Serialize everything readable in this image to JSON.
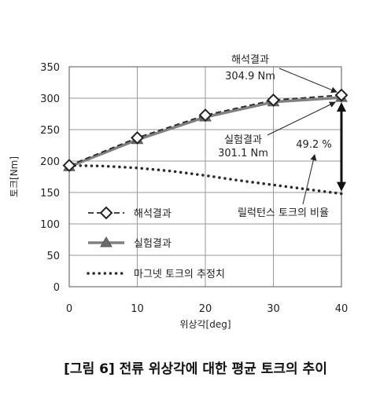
{
  "chart_data": {
    "type": "line",
    "ylabel": "토크[Nm]",
    "xlabel": "위상각[deg]",
    "xlim": [
      0,
      40
    ],
    "ylim": [
      0,
      350
    ],
    "x_ticks": [
      0,
      10,
      20,
      30,
      40
    ],
    "y_ticks": [
      0,
      50,
      100,
      150,
      200,
      250,
      300,
      350
    ],
    "grid": "horizontal",
    "legend_position": "bottom-left",
    "series": [
      {
        "name": "해석결과",
        "style": "dashed-diamond",
        "color": "#2a2a2a",
        "x": [
          0,
          10,
          20,
          30,
          40
        ],
        "y": [
          193,
          237,
          273,
          297,
          304.9
        ]
      },
      {
        "name": "실험결과",
        "style": "solid-triangle",
        "color": "#808080",
        "x": [
          0,
          10,
          20,
          30,
          40
        ],
        "y": [
          191,
          234,
          270,
          294,
          301.1
        ]
      },
      {
        "name": "마그넷 토크의 추정치",
        "style": "dotted",
        "color": "#2a2a2a",
        "x": [
          0,
          5,
          10,
          15,
          20,
          25,
          30,
          35,
          40
        ],
        "y": [
          193,
          192,
          189,
          184,
          177,
          169,
          162,
          155,
          148
        ]
      }
    ],
    "annotations": {
      "analysis_label": "해석결과",
      "analysis_value": "304.9 Nm",
      "experiment_label": "실험결과",
      "experiment_value": "301.1 Nm",
      "ratio_value": "49.2 %",
      "ratio_label": "릴럭턴스 토크의 비율"
    }
  },
  "caption": "[그림 6] 전류 위상각에 대한 평균 토크의 추이"
}
